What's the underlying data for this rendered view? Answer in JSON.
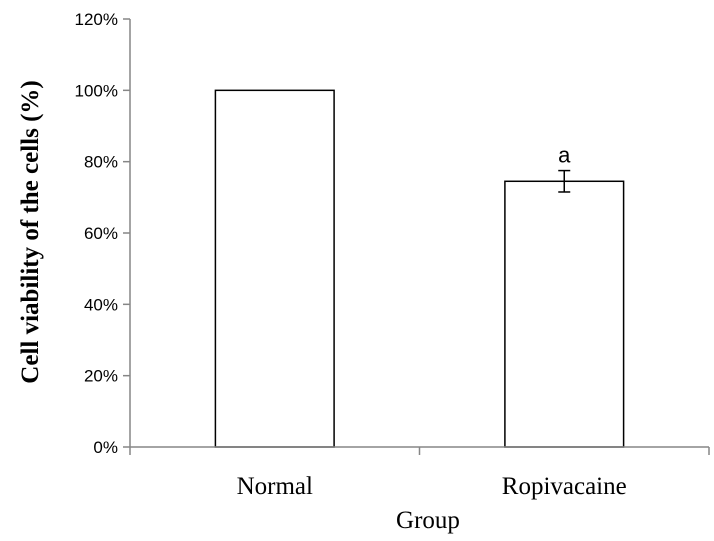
{
  "chart_data": {
    "type": "bar",
    "categories": [
      "Normal",
      "Ropivacaine"
    ],
    "values": [
      1.0,
      0.745
    ],
    "error": [
      null,
      0.03
    ],
    "annotations": [
      "",
      "a"
    ],
    "xlabel": "Group",
    "ylabel": "Cell viability of the cells (%)",
    "ylim": [
      0,
      1.2
    ],
    "yticks": [
      0,
      0.2,
      0.4,
      0.6,
      0.8,
      1.0,
      1.2
    ],
    "ytick_labels": [
      "0%",
      "20%",
      "40%",
      "60%",
      "80%",
      "100%",
      "120%"
    ],
    "grid": false,
    "bar_fill": "#ffffff",
    "bar_stroke": "#000000"
  }
}
